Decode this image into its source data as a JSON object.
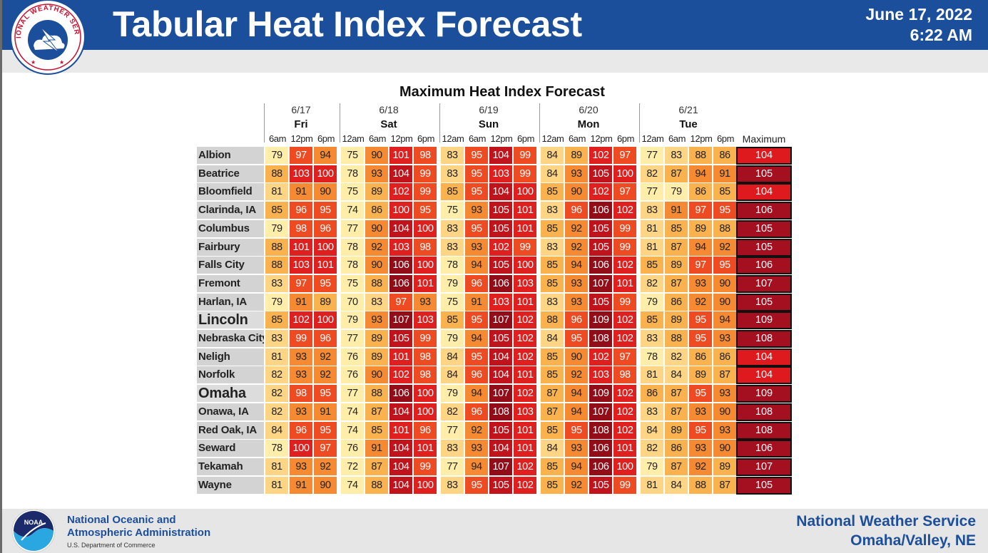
{
  "header": {
    "title": "Tabular Heat Index Forecast",
    "date": "June 17, 2022",
    "time": "6:22 AM",
    "logo_text": "NATIONAL WEATHER SERVICE"
  },
  "chart_data": {
    "type": "table",
    "title": "Maximum Heat Index Forecast",
    "days": [
      {
        "date": "6/17",
        "day": "Fri",
        "times": [
          "6am",
          "12pm",
          "6pm"
        ]
      },
      {
        "date": "6/18",
        "day": "Sat",
        "times": [
          "12am",
          "6am",
          "12pm",
          "6pm"
        ]
      },
      {
        "date": "6/19",
        "day": "Sun",
        "times": [
          "12am",
          "6am",
          "12pm",
          "6pm"
        ]
      },
      {
        "date": "6/20",
        "day": "Mon",
        "times": [
          "12am",
          "6am",
          "12pm",
          "6pm"
        ]
      },
      {
        "date": "6/21",
        "day": "Tue",
        "times": [
          "12am",
          "6am",
          "12pm",
          "6pm"
        ]
      }
    ],
    "max_header": "Maximum",
    "rows": [
      {
        "city": "Albion",
        "values": [
          79,
          97,
          94,
          75,
          90,
          101,
          98,
          83,
          95,
          104,
          99,
          84,
          89,
          102,
          97,
          77,
          83,
          88,
          86
        ],
        "max": 104
      },
      {
        "city": "Beatrice",
        "values": [
          88,
          103,
          100,
          78,
          93,
          104,
          99,
          83,
          95,
          103,
          99,
          84,
          93,
          105,
          100,
          82,
          87,
          94,
          91
        ],
        "max": 105
      },
      {
        "city": "Bloomfield",
        "values": [
          81,
          91,
          90,
          75,
          89,
          102,
          99,
          85,
          95,
          104,
          100,
          85,
          90,
          102,
          97,
          77,
          79,
          86,
          85
        ],
        "max": 104
      },
      {
        "city": "Clarinda, IA",
        "values": [
          85,
          96,
          95,
          74,
          86,
          100,
          95,
          75,
          93,
          105,
          101,
          83,
          96,
          106,
          102,
          83,
          91,
          97,
          95
        ],
        "max": 106
      },
      {
        "city": "Columbus",
        "values": [
          79,
          98,
          96,
          77,
          90,
          104,
          100,
          83,
          95,
          105,
          101,
          85,
          92,
          105,
          99,
          81,
          85,
          89,
          88
        ],
        "max": 105
      },
      {
        "city": "Fairbury",
        "values": [
          88,
          101,
          100,
          78,
          92,
          103,
          98,
          83,
          93,
          102,
          99,
          83,
          92,
          105,
          99,
          81,
          87,
          94,
          92
        ],
        "max": 105
      },
      {
        "city": "Falls City",
        "values": [
          88,
          103,
          101,
          78,
          90,
          106,
          100,
          78,
          94,
          105,
          100,
          85,
          94,
          106,
          102,
          85,
          89,
          97,
          95
        ],
        "max": 106
      },
      {
        "city": "Fremont",
        "values": [
          83,
          97,
          95,
          75,
          88,
          106,
          101,
          79,
          96,
          106,
          103,
          85,
          93,
          107,
          101,
          82,
          87,
          93,
          90
        ],
        "max": 107
      },
      {
        "city": "Harlan, IA",
        "values": [
          79,
          91,
          89,
          70,
          83,
          97,
          93,
          75,
          91,
          103,
          101,
          83,
          93,
          105,
          99,
          79,
          86,
          92,
          90
        ],
        "max": 105
      },
      {
        "city": "Lincoln",
        "values": [
          85,
          102,
          100,
          79,
          93,
          107,
          103,
          85,
          95,
          107,
          102,
          88,
          96,
          109,
          102,
          85,
          89,
          95,
          94
        ],
        "max": 109
      },
      {
        "city": "Nebraska City",
        "values": [
          83,
          99,
          96,
          77,
          89,
          105,
          99,
          79,
          94,
          105,
          102,
          84,
          95,
          108,
          102,
          83,
          88,
          95,
          93
        ],
        "max": 108
      },
      {
        "city": "Neligh",
        "values": [
          81,
          93,
          92,
          76,
          89,
          101,
          98,
          84,
          95,
          104,
          102,
          85,
          90,
          102,
          97,
          78,
          82,
          86,
          86
        ],
        "max": 104
      },
      {
        "city": "Norfolk",
        "values": [
          82,
          93,
          92,
          76,
          90,
          102,
          98,
          84,
          96,
          104,
          101,
          85,
          92,
          103,
          98,
          81,
          84,
          89,
          87
        ],
        "max": 104
      },
      {
        "city": "Omaha",
        "values": [
          82,
          98,
          95,
          77,
          88,
          106,
          100,
          79,
          94,
          107,
          102,
          87,
          94,
          109,
          102,
          86,
          87,
          95,
          93
        ],
        "max": 109
      },
      {
        "city": "Onawa, IA",
        "values": [
          82,
          93,
          91,
          74,
          87,
          104,
          100,
          82,
          96,
          108,
          103,
          87,
          94,
          107,
          102,
          83,
          87,
          93,
          90
        ],
        "max": 108
      },
      {
        "city": "Red Oak, IA",
        "values": [
          84,
          96,
          95,
          74,
          85,
          101,
          96,
          77,
          92,
          105,
          101,
          85,
          95,
          108,
          102,
          84,
          89,
          95,
          93
        ],
        "max": 108
      },
      {
        "city": "Seward",
        "values": [
          78,
          100,
          97,
          76,
          91,
          104,
          101,
          83,
          93,
          104,
          101,
          84,
          93,
          106,
          101,
          82,
          86,
          93,
          90
        ],
        "max": 106
      },
      {
        "city": "Tekamah",
        "values": [
          81,
          93,
          92,
          72,
          87,
          104,
          99,
          77,
          94,
          107,
          102,
          85,
          94,
          106,
          100,
          79,
          87,
          92,
          89
        ],
        "max": 107
      },
      {
        "city": "Wayne",
        "values": [
          81,
          91,
          90,
          74,
          88,
          104,
          100,
          83,
          95,
          105,
          102,
          85,
          92,
          105,
          99,
          81,
          84,
          88,
          87
        ],
        "max": 105
      }
    ]
  },
  "footer": {
    "noaa_line1": "National Oceanic and",
    "noaa_line2": "Atmospheric Administration",
    "noaa_dept": "U.S. Department of Commerce",
    "noaa_logo_text": "NOAA",
    "nws_line1": "National Weather Service",
    "nws_line2": "Omaha/Valley, NE"
  }
}
